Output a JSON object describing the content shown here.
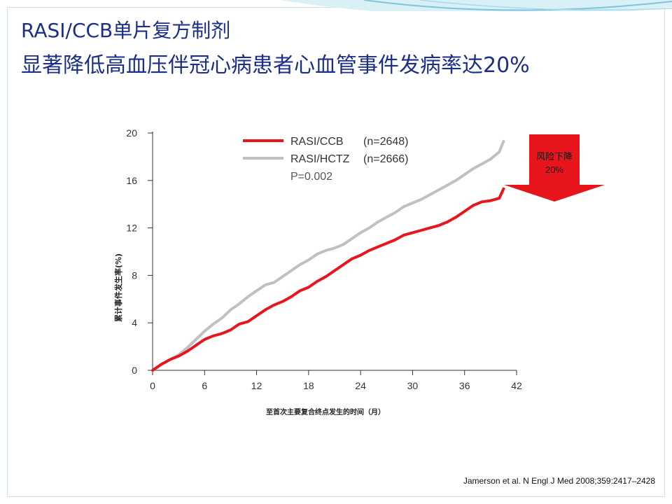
{
  "title": {
    "line1": "RASI/CCB单片复方制剂",
    "line2": "显著降低高血压伴冠心病患者心血管事件发病率达20%"
  },
  "callout": {
    "line1": "风险下降",
    "line2": "20%",
    "color": "#e8161c"
  },
  "citation": "Jamerson et al. N Engl J Med 2008;359:2417–2428",
  "chart_data": {
    "type": "line",
    "xlabel": "至首次主要复合终点发生的时间（月）",
    "ylabel": "累计事件发生率(%)",
    "xlim": [
      0,
      42
    ],
    "ylim": [
      0,
      20
    ],
    "x_ticks": [
      "0",
      "6",
      "12",
      "18",
      "24",
      "30",
      "36",
      "42"
    ],
    "y_ticks": [
      "0",
      "4",
      "8",
      "12",
      "16",
      "20"
    ],
    "legend_position": "top-left",
    "annotation": "P=0.002",
    "series": [
      {
        "name": "RASI/CCB",
        "n_label": "(n=2648)",
        "color": "#e8161c",
        "x": [
          0,
          1,
          2,
          3,
          4,
          5,
          6,
          7,
          8,
          9,
          10,
          11,
          12,
          13,
          14,
          15,
          16,
          17,
          18,
          19,
          20,
          21,
          22,
          23,
          24,
          25,
          26,
          27,
          28,
          29,
          30,
          31,
          32,
          33,
          34,
          35,
          36,
          37,
          38,
          39,
          40,
          40.5
        ],
        "y": [
          0,
          0.5,
          0.9,
          1.2,
          1.6,
          2.1,
          2.6,
          2.9,
          3.1,
          3.4,
          3.9,
          4.1,
          4.6,
          5.1,
          5.5,
          5.8,
          6.2,
          6.7,
          7.0,
          7.5,
          7.9,
          8.4,
          8.9,
          9.4,
          9.7,
          10.1,
          10.4,
          10.7,
          11.0,
          11.4,
          11.6,
          11.8,
          12.0,
          12.2,
          12.5,
          12.9,
          13.4,
          13.9,
          14.2,
          14.3,
          14.5,
          15.3
        ]
      },
      {
        "name": "RASI/HCTZ",
        "n_label": "(n=2666)",
        "color": "#c0c0c0",
        "x": [
          0,
          1,
          2,
          3,
          4,
          5,
          6,
          7,
          8,
          9,
          10,
          11,
          12,
          13,
          14,
          15,
          16,
          17,
          18,
          19,
          20,
          21,
          22,
          23,
          24,
          25,
          26,
          27,
          28,
          29,
          30,
          31,
          32,
          33,
          34,
          35,
          36,
          37,
          38,
          39,
          40,
          40.5
        ],
        "y": [
          0,
          0.5,
          0.9,
          1.3,
          1.9,
          2.6,
          3.3,
          3.9,
          4.4,
          5.1,
          5.6,
          6.2,
          6.7,
          7.2,
          7.4,
          7.9,
          8.4,
          8.9,
          9.3,
          9.8,
          10.1,
          10.3,
          10.6,
          11.1,
          11.6,
          12.0,
          12.5,
          12.9,
          13.3,
          13.8,
          14.1,
          14.4,
          14.8,
          15.2,
          15.6,
          16.0,
          16.5,
          17.0,
          17.4,
          17.8,
          18.4,
          19.3
        ]
      }
    ]
  }
}
